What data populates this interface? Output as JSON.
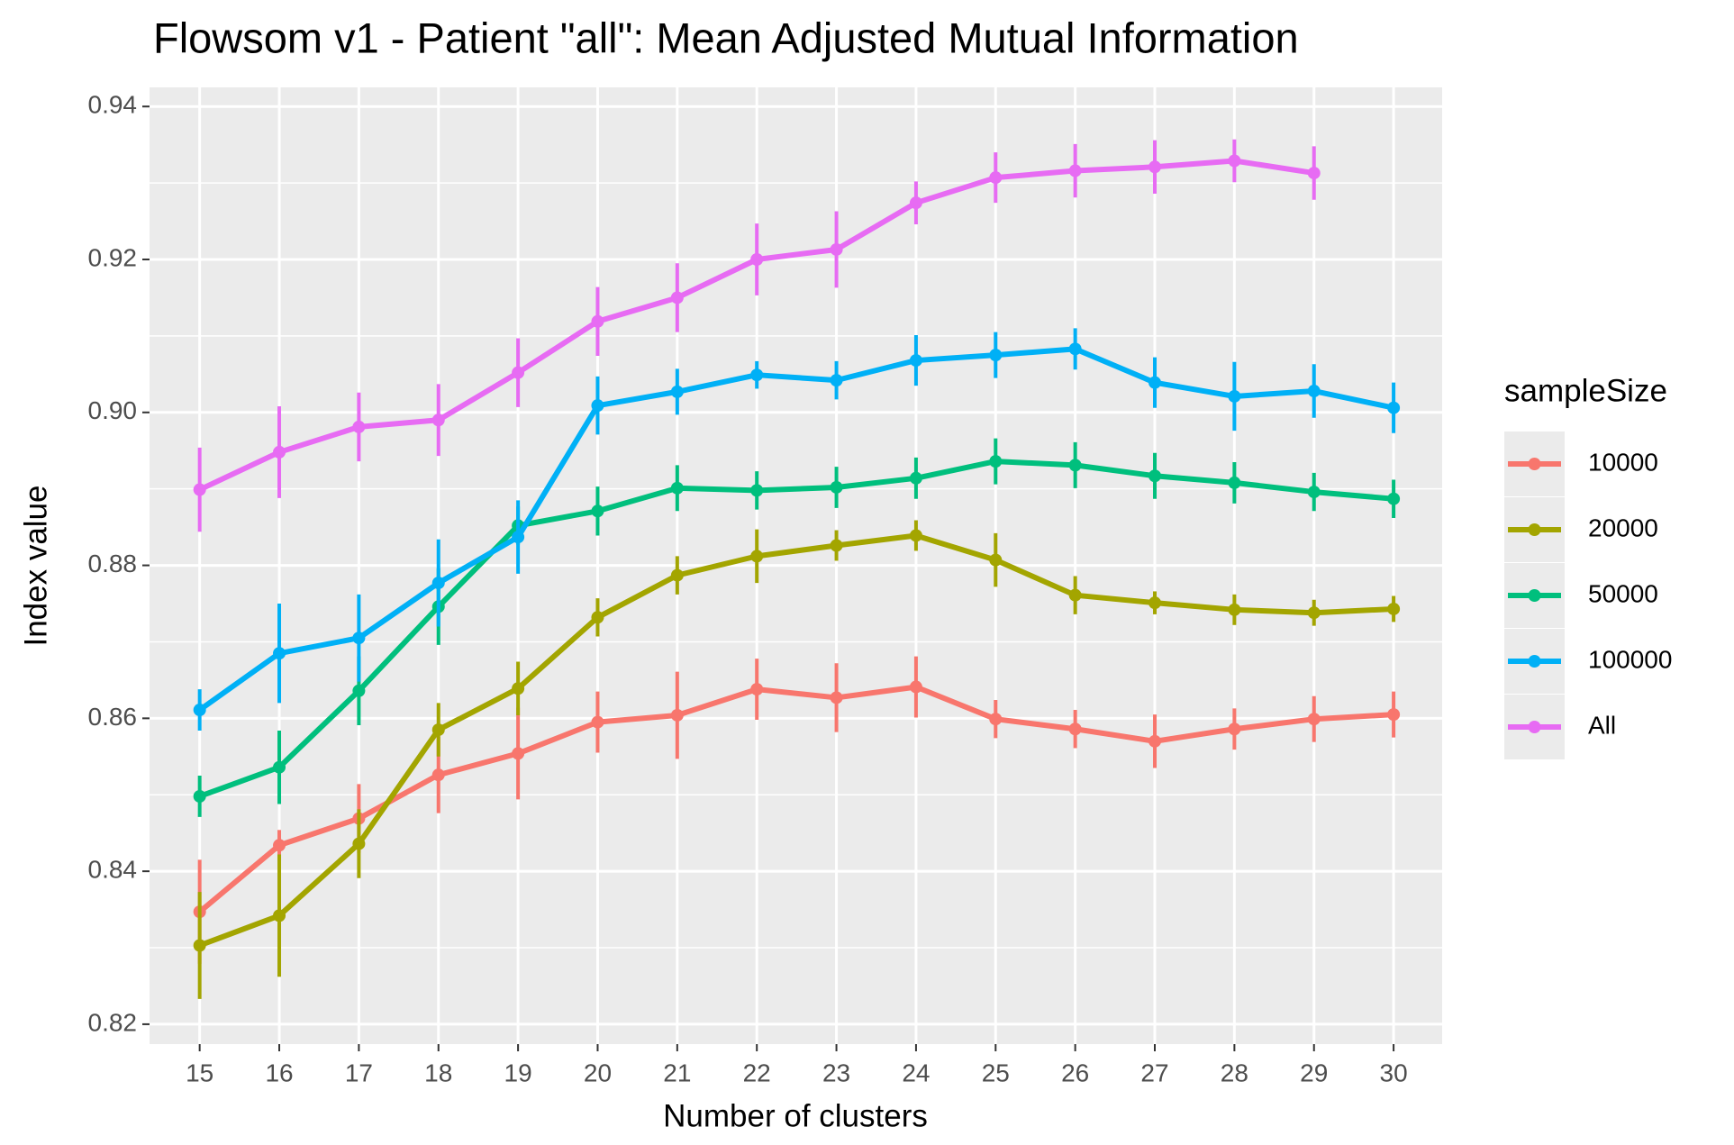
{
  "chart_data": {
    "type": "line",
    "title": "Flowsom v1 - Patient \"all\": Mean Adjusted Mutual Information",
    "xlabel": "Number of clusters",
    "ylabel": "Index value",
    "legend_title": "sampleSize",
    "x": [
      15,
      16,
      17,
      18,
      19,
      20,
      21,
      22,
      23,
      24,
      25,
      26,
      27,
      28,
      29,
      30
    ],
    "xlim": [
      14.37,
      30.61
    ],
    "xticks": [
      15,
      16,
      17,
      18,
      19,
      20,
      21,
      22,
      23,
      24,
      25,
      26,
      27,
      28,
      29,
      30
    ],
    "ylim": [
      0.8174,
      0.9425
    ],
    "yticks": [
      0.82,
      0.84,
      0.86,
      0.88,
      {
        "value": 0.9,
        "label": "0.90"
      },
      0.92,
      0.94
    ],
    "grid": true,
    "legend": "right",
    "series": [
      {
        "name": "10000",
        "color": "#F8766D",
        "values": [
          0.8347,
          0.8434,
          0.8469,
          0.8526,
          0.8554,
          0.8595,
          0.8604,
          0.8638,
          0.8627,
          0.8641,
          0.8599,
          0.8586,
          0.857,
          0.8586,
          0.8599,
          0.8605
        ],
        "errors": [
          0.0068,
          0.002,
          0.0045,
          0.005,
          0.006,
          0.004,
          0.0057,
          0.004,
          0.0045,
          0.004,
          0.0025,
          0.0025,
          0.0035,
          0.0027,
          0.003,
          0.003
        ]
      },
      {
        "name": "20000",
        "color": "#A3A500",
        "values": [
          0.8303,
          0.8342,
          0.8436,
          0.8585,
          0.8639,
          0.8732,
          0.8787,
          0.8812,
          0.8826,
          0.8839,
          0.8807,
          0.8761,
          0.8751,
          0.8742,
          0.8738,
          0.8743
        ],
        "errors": [
          0.007,
          0.008,
          0.0045,
          0.0035,
          0.0035,
          0.0025,
          0.0025,
          0.0035,
          0.002,
          0.002,
          0.0035,
          0.0025,
          0.0015,
          0.002,
          0.0017,
          0.0017
        ]
      },
      {
        "name": "50000",
        "color": "#00BF7D",
        "values": [
          0.8498,
          0.8536,
          0.8636,
          0.8746,
          0.8852,
          0.8871,
          0.8901,
          0.8898,
          0.8902,
          0.8914,
          0.8936,
          0.8931,
          0.8917,
          0.8908,
          0.8896,
          0.8887
        ],
        "errors": [
          0.0027,
          0.0048,
          0.0045,
          0.005,
          0.0025,
          0.0032,
          0.003,
          0.0025,
          0.0027,
          0.0027,
          0.003,
          0.003,
          0.003,
          0.0027,
          0.0025,
          0.0025
        ]
      },
      {
        "name": "100000",
        "color": "#00B0F6",
        "values": [
          0.8611,
          0.8685,
          0.8705,
          0.8777,
          0.8837,
          0.9009,
          0.9027,
          0.9049,
          0.9042,
          0.9068,
          0.9075,
          0.9083,
          0.9039,
          0.9021,
          0.9028,
          0.9006
        ],
        "errors": [
          0.0027,
          0.0065,
          0.0057,
          0.0057,
          0.0048,
          0.0038,
          0.003,
          0.0018,
          0.0025,
          0.0033,
          0.003,
          0.0027,
          0.0033,
          0.0045,
          0.0035,
          0.0033
        ]
      },
      {
        "name": "All",
        "color": "#E76BF3",
        "values": [
          0.8899,
          0.8948,
          0.8981,
          0.899,
          0.9052,
          0.9119,
          0.915,
          0.92,
          0.9213,
          0.9274,
          0.9307,
          0.9316,
          0.9321,
          0.9329,
          0.9313,
          null
        ],
        "errors": [
          0.0055,
          0.006,
          0.0045,
          0.0047,
          0.0045,
          0.0045,
          0.0045,
          0.0047,
          0.005,
          0.0028,
          0.0033,
          0.0035,
          0.0035,
          0.0028,
          0.0035,
          null
        ]
      }
    ]
  }
}
